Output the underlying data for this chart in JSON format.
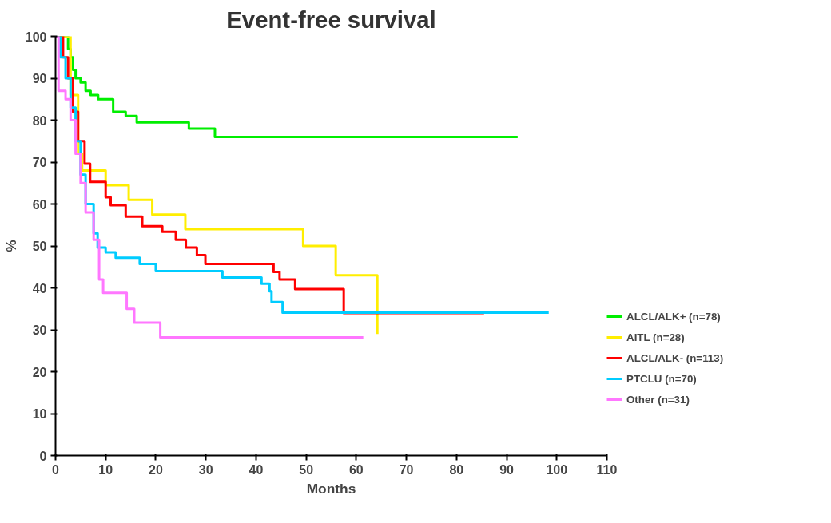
{
  "chart_data": {
    "type": "step",
    "title": "Event-free survival",
    "xlabel": "Months",
    "ylabel": "%",
    "xlim": [
      0,
      110
    ],
    "ylim": [
      0,
      100
    ],
    "xticks": [
      0,
      10,
      20,
      30,
      40,
      50,
      60,
      70,
      80,
      90,
      100,
      110
    ],
    "yticks": [
      0,
      10,
      20,
      30,
      40,
      50,
      60,
      70,
      80,
      90,
      100
    ],
    "grid": false,
    "legend": "right",
    "line_style": "solid",
    "series": [
      {
        "name": "ALCL/ALK+ (n=78)",
        "color": "#00ee00",
        "x": [
          0,
          2.5,
          3,
          3.5,
          4,
          5,
          6,
          7,
          8.5,
          11.5,
          14,
          16.2,
          26.6,
          31.8,
          92.2
        ],
        "values": [
          100,
          97,
          95,
          92,
          90,
          89,
          87,
          86,
          85,
          82,
          81,
          79.5,
          78,
          76,
          76
        ]
      },
      {
        "name": "AITL (n=28)",
        "color": "#ffee00",
        "x": [
          0,
          3,
          4.5,
          5.3,
          10,
          14.6,
          19.3,
          25.9,
          49.4,
          55.9,
          64.2
        ],
        "values": [
          100,
          86,
          72,
          68,
          64.5,
          61,
          57.5,
          54,
          50,
          43,
          29
        ]
      },
      {
        "name": "ALCL/ALK- (n=113)",
        "color": "#ff0000",
        "x": [
          0,
          1.5,
          2.5,
          3.5,
          4.5,
          5.8,
          6.9,
          10,
          11,
          14,
          17.3,
          21.3,
          24,
          26,
          28.2,
          29.9,
          43.5,
          44.7,
          47.8,
          57.5,
          85.5
        ],
        "values": [
          100,
          95,
          90,
          82,
          75,
          69.6,
          65.3,
          61.6,
          59.7,
          57,
          54.7,
          53.4,
          51.5,
          49.6,
          47.8,
          45.7,
          43.8,
          42,
          39.7,
          34,
          34
        ]
      },
      {
        "name": "PTCLU (n=70)",
        "color": "#00ccff",
        "x": [
          0,
          1,
          2,
          3,
          4,
          5,
          6,
          7.6,
          8.4,
          10,
          12,
          16.8,
          20,
          33.3,
          41.1,
          42.7,
          43.1,
          45.3,
          98.4
        ],
        "values": [
          100,
          95,
          90,
          83,
          75,
          67,
          60,
          53,
          49.6,
          48.5,
          47.2,
          45.7,
          44,
          42.5,
          41,
          39.2,
          36.6,
          34.1,
          34.1
        ]
      },
      {
        "name": "Other (n=31)",
        "color": "#ff77ff",
        "x": [
          0,
          0.6,
          2,
          3,
          4,
          5,
          6,
          7.6,
          8.7,
          9.5,
          14.2,
          15.7,
          20.9,
          61.4
        ],
        "values": [
          100,
          87,
          85,
          80,
          72,
          65,
          58,
          51.5,
          42,
          38.8,
          35,
          31.7,
          28.2,
          28.2
        ]
      }
    ]
  }
}
